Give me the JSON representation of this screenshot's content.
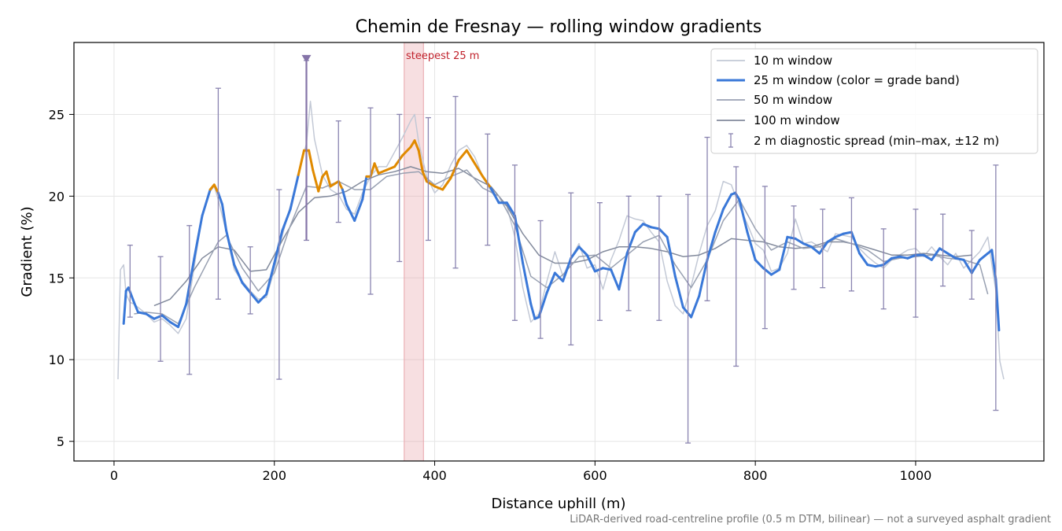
{
  "chart_data": {
    "type": "line",
    "title": "Chemin de Fresnay — rolling window gradients",
    "xlabel": "Distance uphill (m)",
    "ylabel": "Gradient (%)",
    "xlim": [
      -50,
      1160
    ],
    "ylim": [
      3.8,
      29.4
    ],
    "xticks": [
      0,
      200,
      400,
      600,
      800,
      1000
    ],
    "yticks": [
      5,
      10,
      15,
      20,
      25
    ],
    "grid": true,
    "legend_position": "top-right",
    "footnote": "LiDAR-derived road-centreline profile (0.5 m DTM, bilinear) — not a surveyed asphalt gradient",
    "annotation": {
      "label": "steepest 25 m",
      "x_start": 362,
      "x_end": 386,
      "color": "#e8a4aa"
    },
    "marker": {
      "x": 240,
      "y_min": 17.3,
      "y_max": 28.3
    },
    "grade_band_colors": {
      "base": "#3a78d8",
      "steep": "#e08a00",
      "steep_threshold": 20.2
    },
    "series": [
      {
        "name": "10 m window",
        "color": "#c3c9d6",
        "x": [
          5,
          8,
          12,
          15,
          20,
          25,
          30,
          40,
          50,
          60,
          70,
          80,
          90,
          100,
          110,
          120,
          125,
          130,
          140,
          150,
          160,
          170,
          180,
          190,
          200,
          210,
          220,
          230,
          240,
          245,
          250,
          260,
          270,
          280,
          290,
          300,
          310,
          320,
          330,
          340,
          350,
          360,
          370,
          375,
          380,
          390,
          400,
          410,
          420,
          430,
          440,
          450,
          460,
          470,
          480,
          490,
          500,
          510,
          520,
          530,
          540,
          550,
          560,
          570,
          580,
          590,
          600,
          610,
          620,
          630,
          640,
          650,
          660,
          670,
          680,
          690,
          700,
          710,
          720,
          730,
          740,
          750,
          760,
          770,
          780,
          790,
          800,
          810,
          820,
          830,
          840,
          850,
          860,
          870,
          880,
          890,
          900,
          910,
          920,
          930,
          940,
          950,
          960,
          970,
          980,
          990,
          1000,
          1010,
          1020,
          1030,
          1040,
          1050,
          1060,
          1070,
          1080,
          1090,
          1100,
          1105,
          1110
        ],
        "y": [
          8.8,
          15.5,
          15.8,
          14,
          13.5,
          13.4,
          13.2,
          12.8,
          12.3,
          12.5,
          12.1,
          11.6,
          12.5,
          15.7,
          18.8,
          20.3,
          20.6,
          19.8,
          17.8,
          15.5,
          14.8,
          14.2,
          13.7,
          13.8,
          15.5,
          17.6,
          19.4,
          21.4,
          23.2,
          25.8,
          23.5,
          21.3,
          20.4,
          20.1,
          19.2,
          18.9,
          20.2,
          21.2,
          21.8,
          21.8,
          22.7,
          23.6,
          24.6,
          25,
          23.3,
          21.2,
          20.2,
          20.7,
          21.9,
          22.8,
          23.1,
          22.4,
          21.2,
          20.3,
          19.7,
          19.4,
          17.5,
          14.4,
          12.3,
          12.8,
          14.8,
          16.6,
          15.1,
          16.2,
          17.1,
          15.6,
          15.8,
          14.3,
          16.1,
          17.3,
          18.8,
          18.6,
          18.5,
          17.8,
          17.2,
          14.8,
          13.3,
          12.8,
          14.5,
          16.5,
          18.2,
          19.1,
          20.9,
          20.7,
          19.4,
          18.3,
          17.1,
          16.7,
          15.4,
          15.6,
          16.5,
          18.6,
          17.1,
          17.2,
          16.9,
          16.6,
          17.7,
          17.6,
          17.5,
          16.8,
          16.3,
          15.9,
          15.6,
          16.1,
          16.4,
          16.7,
          16.8,
          16.3,
          16.9,
          16.3,
          15.8,
          16.5,
          15.6,
          16.1,
          16.6,
          17.5,
          14.2,
          9.9,
          8.8
        ]
      },
      {
        "name": "25 m window (color = grade band)",
        "color": "#3a78d8",
        "x": [
          12,
          15,
          18,
          25,
          30,
          40,
          50,
          60,
          70,
          80,
          90,
          100,
          110,
          120,
          125,
          130,
          135,
          140,
          150,
          160,
          170,
          180,
          190,
          200,
          210,
          220,
          230,
          237,
          243,
          248,
          255,
          260,
          265,
          270,
          280,
          285,
          290,
          300,
          310,
          315,
          320,
          325,
          330,
          340,
          350,
          360,
          370,
          375,
          380,
          385,
          390,
          400,
          410,
          420,
          430,
          440,
          450,
          460,
          470,
          480,
          490,
          500,
          510,
          520,
          525,
          530,
          540,
          550,
          560,
          570,
          580,
          590,
          600,
          610,
          620,
          630,
          640,
          650,
          660,
          670,
          680,
          690,
          700,
          710,
          720,
          730,
          740,
          750,
          760,
          770,
          775,
          780,
          790,
          800,
          810,
          820,
          830,
          840,
          850,
          860,
          870,
          880,
          890,
          900,
          910,
          920,
          930,
          940,
          950,
          960,
          970,
          980,
          990,
          1000,
          1010,
          1020,
          1030,
          1040,
          1050,
          1060,
          1070,
          1080,
          1090,
          1095,
          1100,
          1104
        ],
        "y": [
          12.2,
          14.2,
          14.4,
          13.5,
          12.9,
          12.8,
          12.5,
          12.7,
          12.3,
          12,
          13.4,
          16.2,
          18.8,
          20.4,
          20.7,
          20.2,
          19.5,
          17.9,
          15.8,
          14.7,
          14.1,
          13.5,
          14,
          15.9,
          17.9,
          19.2,
          21.3,
          22.8,
          22.8,
          21.6,
          20.3,
          21.2,
          21.5,
          20.6,
          20.9,
          20.4,
          19.5,
          18.5,
          19.8,
          21.2,
          21.2,
          22,
          21.4,
          21.6,
          21.8,
          22.5,
          23,
          23.4,
          22.8,
          21.5,
          20.9,
          20.6,
          20.4,
          21.1,
          22.2,
          22.8,
          22,
          21.2,
          20.5,
          19.6,
          19.6,
          18.8,
          15.9,
          13.4,
          12.5,
          12.6,
          14.1,
          15.3,
          14.8,
          16.2,
          16.9,
          16.4,
          15.4,
          15.6,
          15.5,
          14.3,
          16.5,
          17.8,
          18.3,
          18.1,
          18,
          17.5,
          15.1,
          13.2,
          12.6,
          13.9,
          16.1,
          17.8,
          19.2,
          20.1,
          20.2,
          19.8,
          17.8,
          16.1,
          15.6,
          15.2,
          15.5,
          17.5,
          17.4,
          17.1,
          16.9,
          16.5,
          17.2,
          17.5,
          17.7,
          17.8,
          16.5,
          15.8,
          15.7,
          15.8,
          16.2,
          16.3,
          16.2,
          16.4,
          16.4,
          16.1,
          16.8,
          16.5,
          16.2,
          16.1,
          15.3,
          16.1,
          16.5,
          16.7,
          14.9,
          11.8
        ]
      },
      {
        "name": "50 m window",
        "color": "#99a1b2",
        "x": [
          25,
          40,
          60,
          80,
          100,
          120,
          130,
          140,
          160,
          180,
          200,
          220,
          240,
          260,
          280,
          300,
          320,
          340,
          360,
          380,
          400,
          420,
          440,
          460,
          480,
          500,
          520,
          540,
          560,
          580,
          600,
          620,
          640,
          660,
          680,
          700,
          720,
          740,
          760,
          780,
          800,
          820,
          840,
          860,
          880,
          900,
          920,
          940,
          960,
          980,
          1000,
          1020,
          1040,
          1060,
          1080,
          1090
        ],
        "y": [
          12.8,
          12.9,
          12.8,
          12.2,
          14.4,
          16.3,
          17.2,
          17.6,
          15.6,
          14.2,
          15.3,
          18.2,
          20.6,
          20.5,
          20.9,
          20.4,
          20.4,
          21.2,
          21.4,
          21.5,
          20.7,
          21.2,
          21.6,
          20.5,
          20.0,
          18.2,
          15.1,
          14.4,
          15.2,
          16.3,
          16.4,
          15.6,
          16.4,
          17.2,
          17.6,
          15.8,
          14.4,
          16.1,
          18.5,
          19.8,
          18.0,
          16.7,
          17.2,
          16.8,
          16.9,
          17.4,
          17.1,
          16.7,
          16.0,
          16.2,
          16.3,
          16.4,
          16.2,
          16.1,
          15.8,
          14.0
        ]
      },
      {
        "name": "100 m window",
        "color": "#828a9c",
        "x": [
          50,
          70,
          90,
          110,
          130,
          150,
          170,
          190,
          210,
          230,
          250,
          270,
          290,
          310,
          330,
          350,
          370,
          390,
          410,
          430,
          450,
          470,
          490,
          510,
          530,
          550,
          570,
          590,
          610,
          630,
          650,
          670,
          690,
          710,
          730,
          750,
          770,
          790,
          810,
          830,
          850,
          870,
          890,
          910,
          930,
          950,
          970,
          990,
          1010,
          1030,
          1050,
          1070
        ],
        "y": [
          13.3,
          13.7,
          14.8,
          16.2,
          16.9,
          16.7,
          15.4,
          15.5,
          17.3,
          19.0,
          19.9,
          20.0,
          20.3,
          20.9,
          21.3,
          21.5,
          21.8,
          21.5,
          21.4,
          21.7,
          21.1,
          20.6,
          19.4,
          17.7,
          16.4,
          15.9,
          15.9,
          16.1,
          16.6,
          16.9,
          16.9,
          16.8,
          16.6,
          16.3,
          16.4,
          16.8,
          17.4,
          17.3,
          17.2,
          16.9,
          16.8,
          16.9,
          17.2,
          17.2,
          17.0,
          16.7,
          16.4,
          16.4,
          16.5,
          16.4,
          16.3,
          16.4
        ]
      },
      {
        "name": "2 m diagnostic spread (min–max, ±12 m)",
        "color": "#8a84b0",
        "x": [
          20,
          58,
          94,
          130,
          170,
          206,
          240,
          280,
          320,
          356,
          392,
          426,
          466,
          500,
          532,
          570,
          606,
          642,
          680,
          716,
          740,
          776,
          812,
          848,
          884,
          920,
          960,
          1000,
          1034,
          1070,
          1100
        ],
        "low": [
          12.6,
          9.9,
          9.1,
          13.7,
          12.8,
          8.8,
          17.3,
          18.4,
          14.0,
          16.0,
          17.3,
          15.6,
          17.0,
          12.4,
          11.3,
          10.9,
          12.4,
          13.0,
          12.4,
          4.9,
          13.6,
          9.6,
          11.9,
          14.3,
          14.4,
          14.2,
          13.1,
          12.6,
          14.5,
          13.7,
          6.9
        ],
        "high": [
          17.0,
          16.3,
          18.2,
          26.6,
          16.9,
          20.4,
          28.3,
          24.6,
          25.4,
          25.0,
          24.8,
          26.1,
          23.8,
          21.9,
          18.5,
          20.2,
          19.6,
          20.0,
          20.0,
          20.1,
          23.6,
          21.8,
          20.6,
          19.4,
          19.2,
          19.9,
          18.0,
          19.2,
          18.9,
          17.9,
          21.9
        ]
      }
    ]
  }
}
